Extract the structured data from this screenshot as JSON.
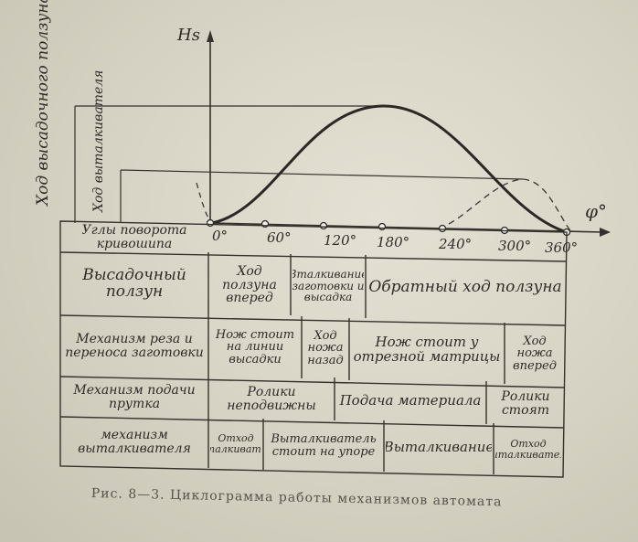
{
  "axes": {
    "y_label": "Hs",
    "x_label": "φ°",
    "tick_labels": [
      "0°",
      "60°",
      "120°",
      "180°",
      "240°",
      "300°",
      "360°"
    ]
  },
  "left_labels": {
    "upsetting_slide_stroke": "Ход высадочного ползуна",
    "ejector_stroke": "Ход выталкивателя"
  },
  "rows": [
    {
      "header": "Углы поворота кривошипа",
      "cells": []
    },
    {
      "header": "Высадочный ползун",
      "cells": [
        "Ход ползуна вперед",
        "Вталкивание заготовки и высадка",
        "Обратный ход ползуна"
      ]
    },
    {
      "header": "Механизм реза и переноса заготовки",
      "cells": [
        "Нож стоит на линии высадки",
        "Ход ножа назад",
        "Нож стоит у отрезной матрицы",
        "Ход ножа вперед"
      ]
    },
    {
      "header": "Механизм подачи прутка",
      "cells": [
        "Ролики неподвижны",
        "Подача материала",
        "Ролики стоят"
      ]
    },
    {
      "header": "механизм выталкивателя",
      "cells": [
        "Отход выталкивателя",
        "Выталкиватель стоит на упоре",
        "Выталкивание",
        "Отход выталкивателя"
      ]
    }
  ],
  "caption": "Рис. 8—3. Циклограмма работы механизмов автомата"
}
